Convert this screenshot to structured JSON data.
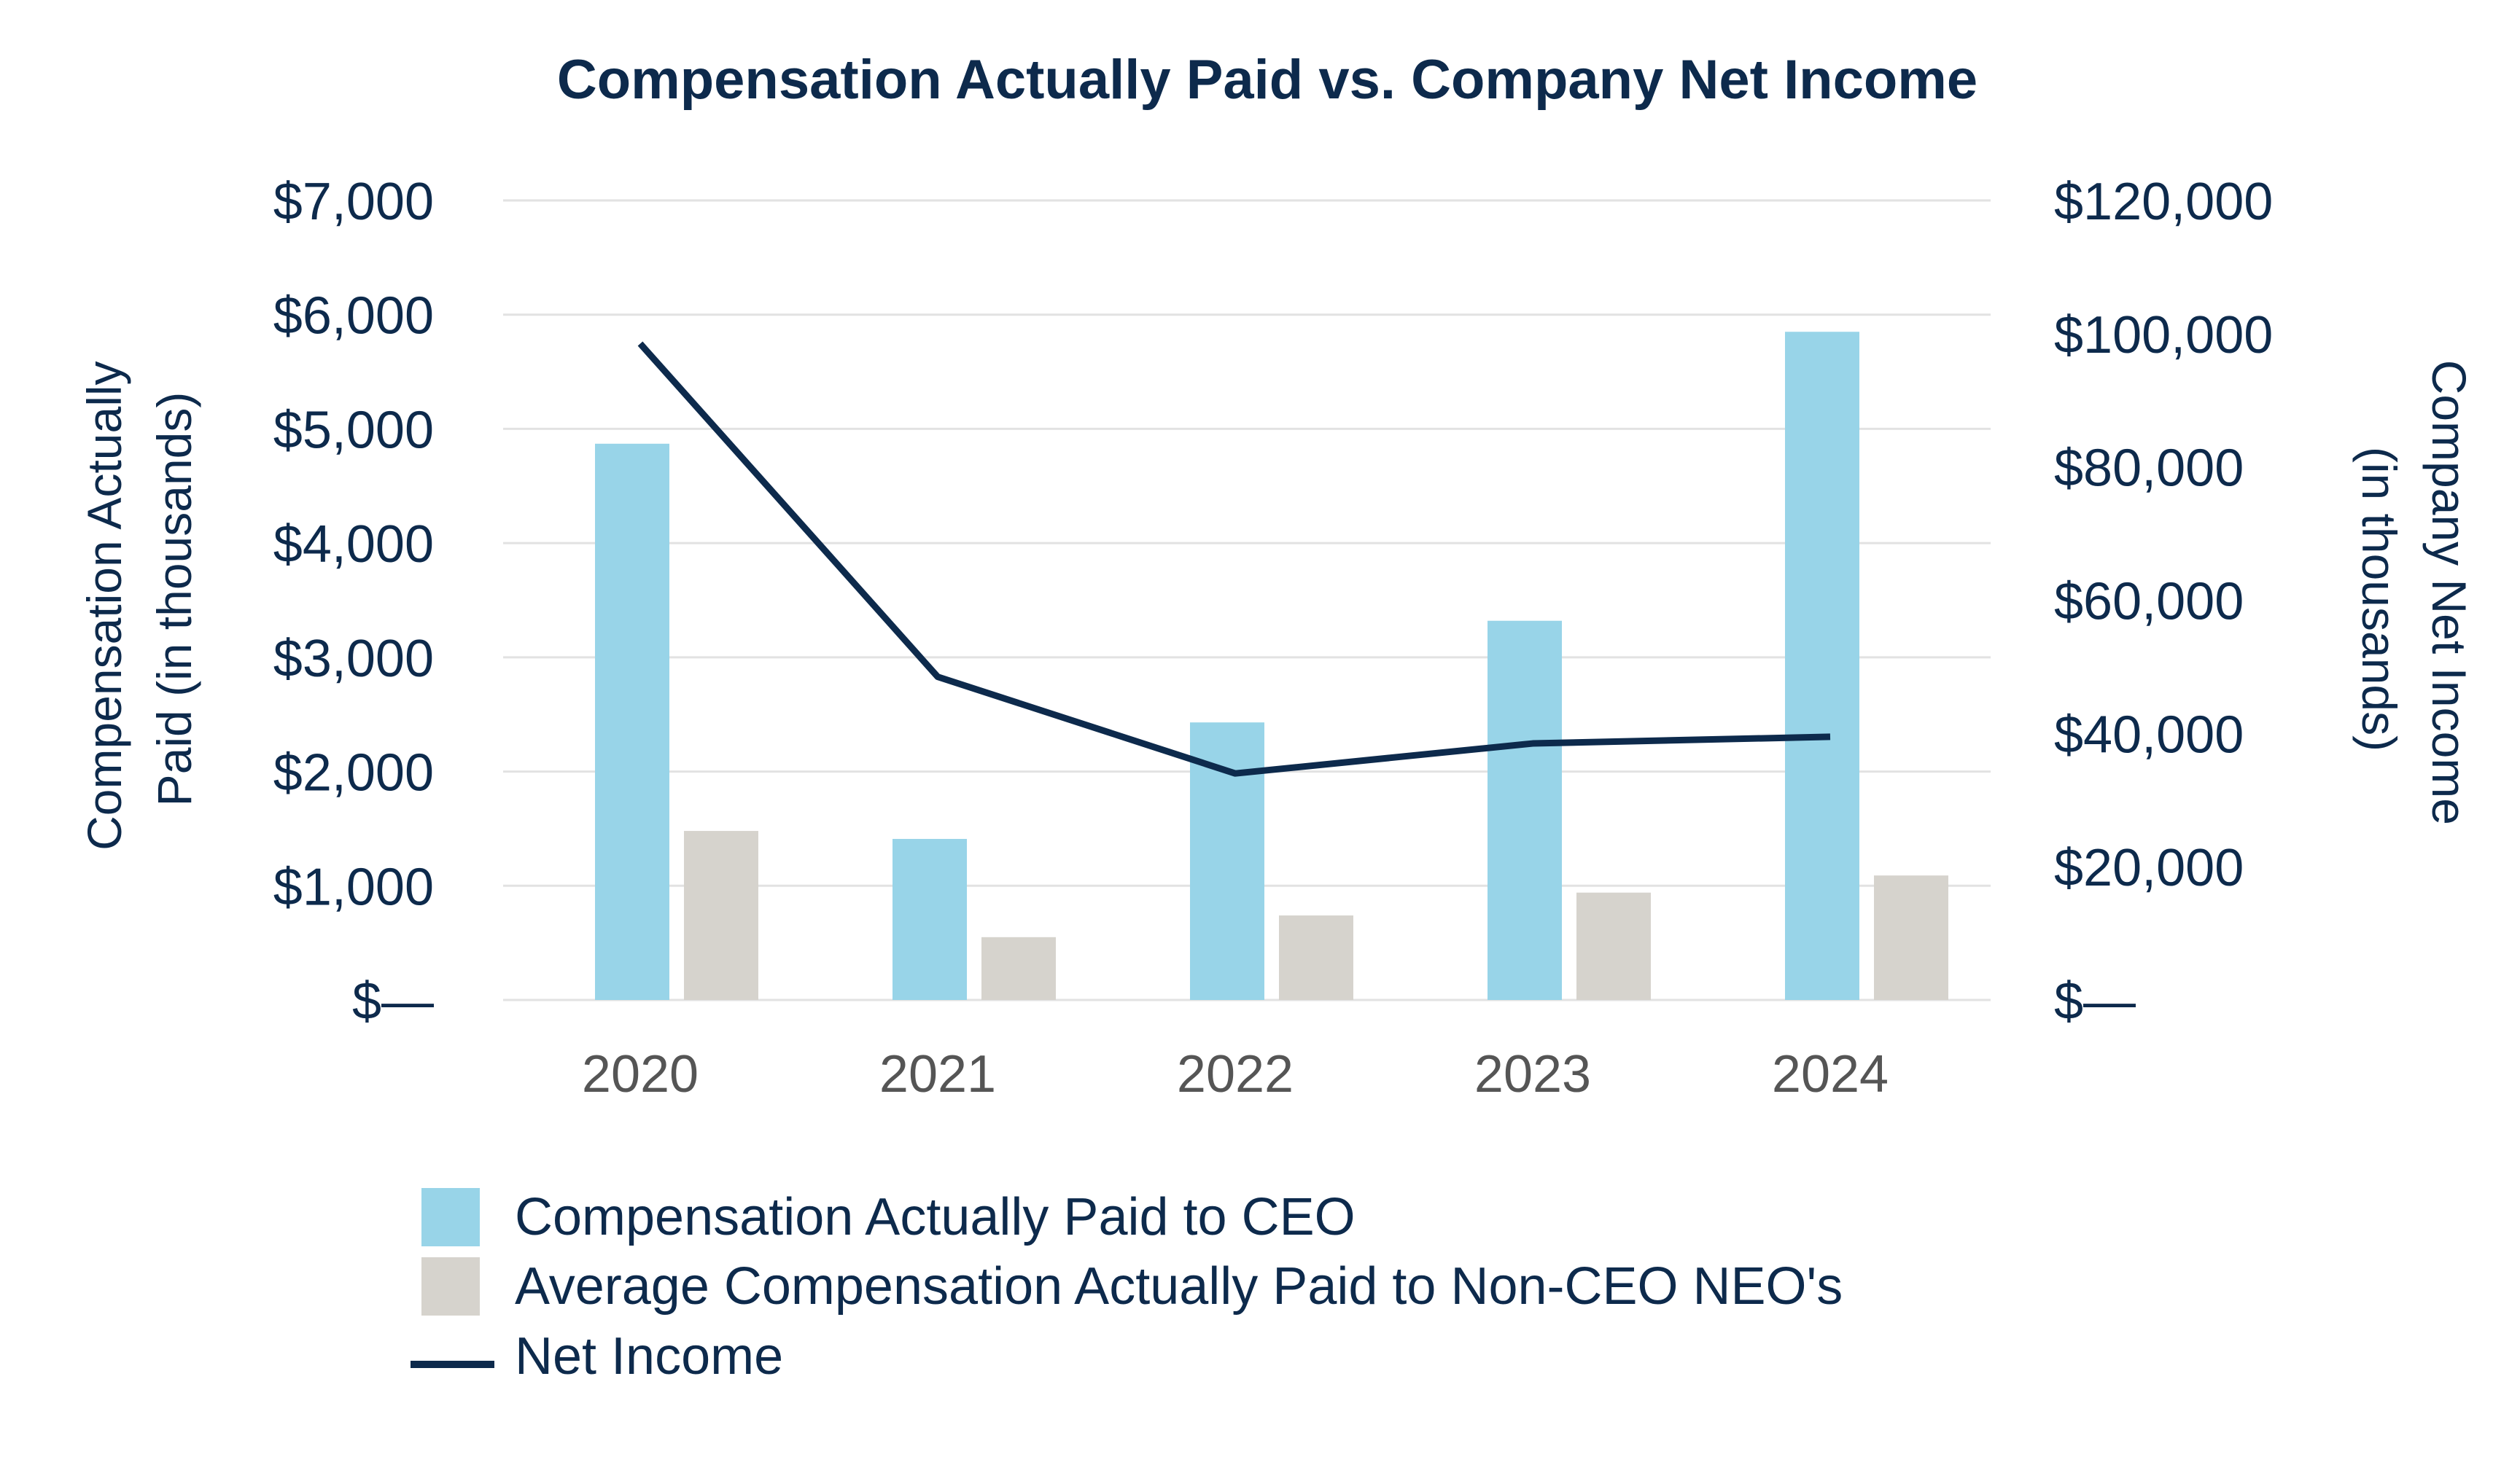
{
  "chart_data": {
    "type": "bar",
    "title": "Compensation Actually Paid vs. Company Net Income",
    "categories": [
      "2020",
      "2021",
      "2022",
      "2023",
      "2024"
    ],
    "series": [
      {
        "name": "Compensation Actually Paid to CEO",
        "kind": "bar",
        "axis": "left",
        "color": "#98d4e8",
        "values": [
          4870,
          1410,
          2430,
          3320,
          5850
        ]
      },
      {
        "name": "Average Compensation Actually Paid to Non-CEO NEO's",
        "kind": "bar",
        "axis": "left",
        "color": "#d6d3cd",
        "values": [
          1480,
          550,
          740,
          940,
          1090
        ]
      },
      {
        "name": "Net Income",
        "kind": "line",
        "axis": "right",
        "color": "#0d2a4c",
        "values": [
          98500,
          48500,
          34000,
          38500,
          39500
        ]
      }
    ],
    "ylabel": "Compensation Actually Paid (in thousands)",
    "ylabel_lines": [
      "Compensation Actually",
      "Paid (in thousands)"
    ],
    "ylim": [
      0,
      7000
    ],
    "yticks": [
      0,
      1000,
      2000,
      3000,
      4000,
      5000,
      6000,
      7000
    ],
    "ytick_labels": [
      "$—",
      "$1,000",
      "$2,000",
      "$3,000",
      "$4,000",
      "$5,000",
      "$6,000",
      "$7,000"
    ],
    "y2label": "Company Net Income (in thousands)",
    "y2label_lines": [
      "Company Net Income",
      "(in thousands)"
    ],
    "y2lim": [
      0,
      120000
    ],
    "y2ticks": [
      0,
      20000,
      40000,
      60000,
      80000,
      100000,
      120000
    ],
    "y2tick_labels": [
      "$—",
      "$20,000",
      "$40,000",
      "$60,000",
      "$80,000",
      "$100,000",
      "$120,000"
    ],
    "grid": true,
    "legend_position": "bottom-left",
    "colors": {
      "title": "#0d2a4c",
      "axis_text": "#0d2a4c",
      "xtick_text": "#555555",
      "grid": "#e2e2e2"
    }
  }
}
